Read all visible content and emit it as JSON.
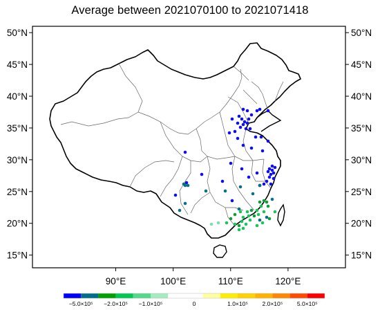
{
  "title": "Average between 2021070100 to 2021071418",
  "map": {
    "lat_labels": [
      "50°N",
      "45°N",
      "40°N",
      "35°N",
      "30°N",
      "25°N",
      "20°N",
      "15°N"
    ],
    "lat_values": [
      50,
      45,
      40,
      35,
      30,
      25,
      20,
      15
    ],
    "lon_labels": [
      "90°E",
      "100°E",
      "110°E",
      "120°E"
    ],
    "lon_values": [
      90,
      100,
      110,
      120
    ],
    "extent": {
      "lon_min": 75.5,
      "lon_max": 130,
      "lat_min": 13,
      "lat_max": 51
    }
  },
  "colorbar": {
    "colors": [
      "#0000ff",
      "#00708a",
      "#00a000",
      "#00c850",
      "#55d889",
      "#a4ebc0",
      "#ffffff",
      "#ffffff",
      "#ffffa0",
      "#ffee00",
      "#ffd200",
      "#ffb300",
      "#ff8800",
      "#ff4a00",
      "#ff0000"
    ],
    "labels": [
      "−5.0×10⁵",
      "−2.0×10⁵",
      "−1.0×10⁵",
      "0",
      "1.0×10⁵",
      "2.0×10⁵",
      "5.0×10⁵"
    ]
  },
  "stations": {
    "blue": "#1010e6",
    "teal": "#0c6f8a",
    "dgreen": "#119c3a",
    "green": "#19c45e",
    "lgreen": "#7ce0a8"
  }
}
